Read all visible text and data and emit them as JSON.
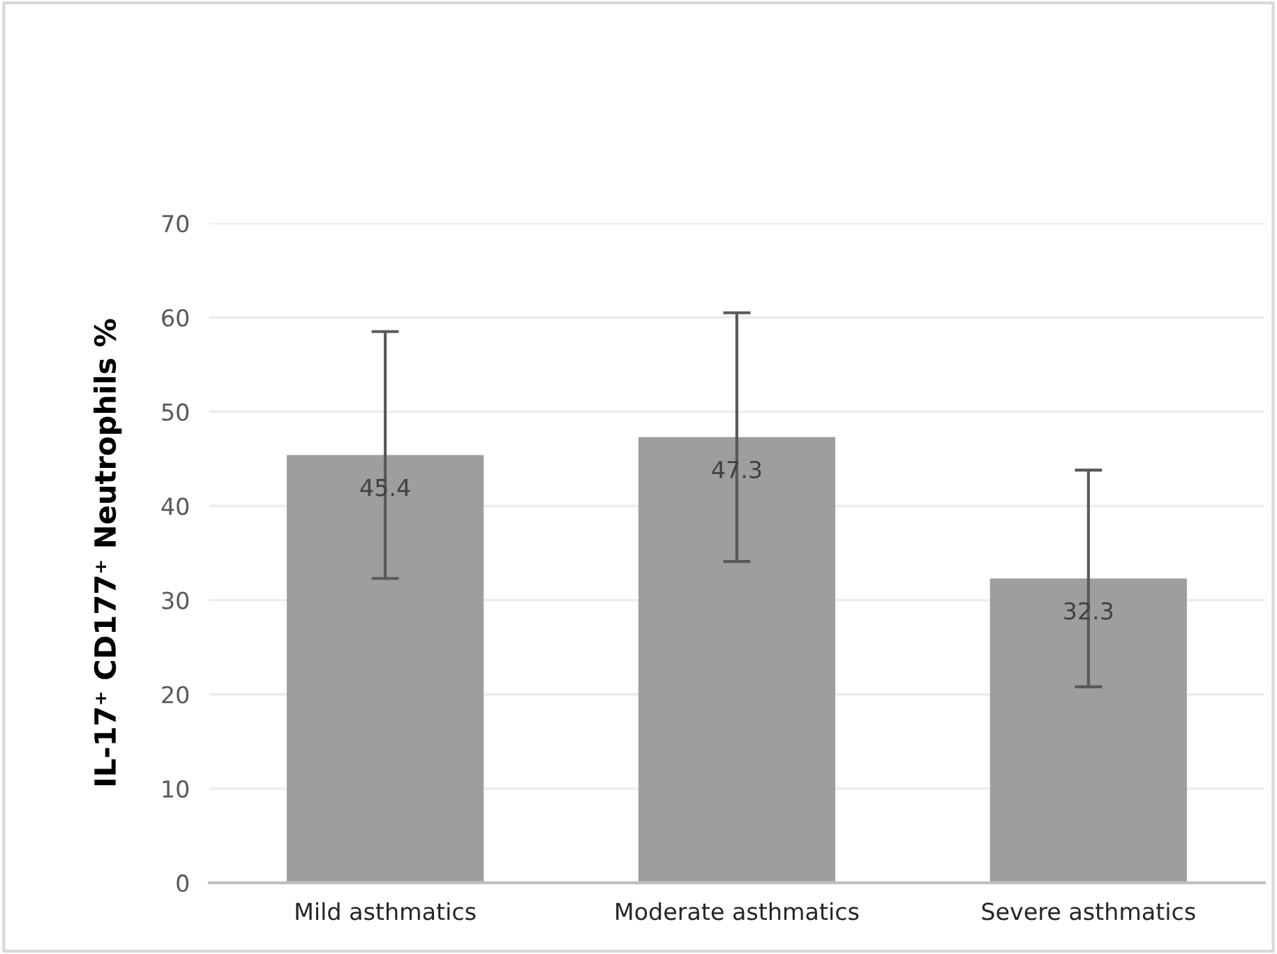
{
  "chart_data": {
    "type": "bar",
    "ylabel": "IL-17⁺ CD177⁺ Neutrophils %",
    "categories": [
      "Mild asthmatics",
      "Moderate asthmatics",
      "Severe asthmatics"
    ],
    "values": [
      45.4,
      47.3,
      32.3
    ],
    "errors": [
      13.1,
      13.2,
      11.5
    ],
    "color": "#9e9e9e",
    "ylim": [
      0,
      70
    ],
    "yticks": [
      0,
      10,
      20,
      30,
      40,
      50,
      60,
      70
    ],
    "grid": "y",
    "data_labels": true
  }
}
